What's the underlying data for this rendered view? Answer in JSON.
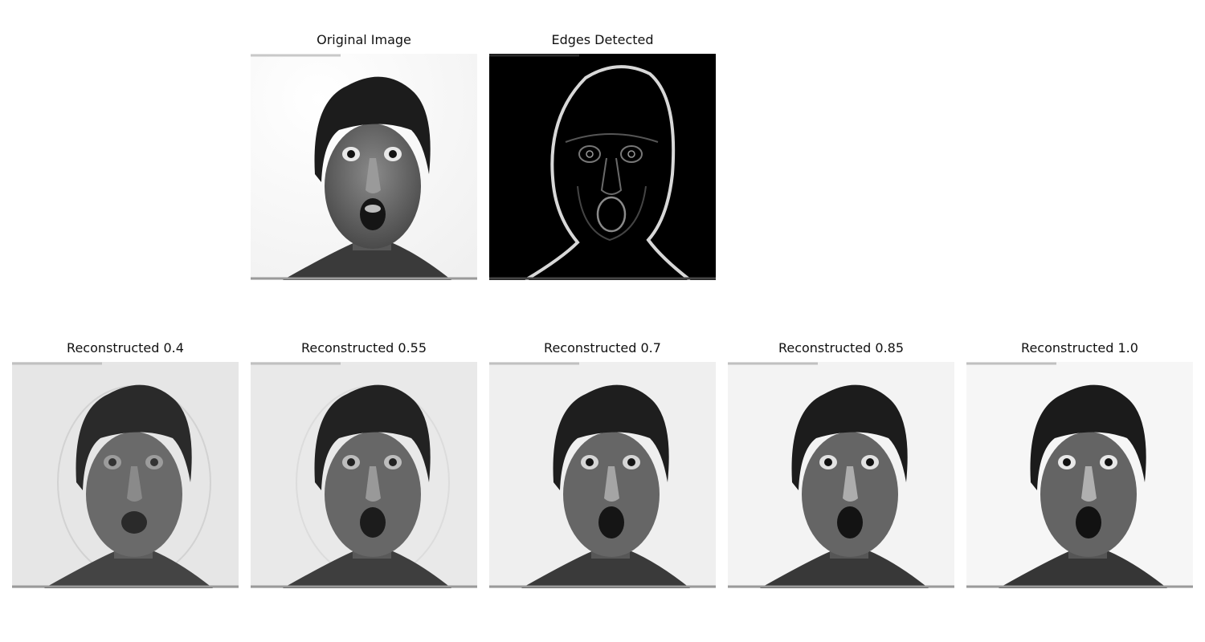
{
  "figure": {
    "panels": [
      {
        "id": "original",
        "title": "Original Image",
        "kind": "photo"
      },
      {
        "id": "edges",
        "title": "Edges Detected",
        "kind": "edges"
      },
      {
        "id": "recon_040",
        "title": "Reconstructed 0.4",
        "kind": "reconstruction",
        "level": 0.4
      },
      {
        "id": "recon_055",
        "title": "Reconstructed 0.55",
        "kind": "reconstruction",
        "level": 0.55
      },
      {
        "id": "recon_070",
        "title": "Reconstructed 0.7",
        "kind": "reconstruction",
        "level": 0.7
      },
      {
        "id": "recon_085",
        "title": "Reconstructed 0.85",
        "kind": "reconstruction",
        "level": 0.85
      },
      {
        "id": "recon_100",
        "title": "Reconstructed 1.0",
        "kind": "reconstruction",
        "level": 1.0
      }
    ]
  },
  "colors": {
    "background": "#ffffff",
    "photo_background": "#f2f2f2",
    "hair": "#1c1c1c",
    "skin": "#6e6e6e",
    "edges_background": "#000000",
    "edge_line": "#d8d8d8"
  }
}
